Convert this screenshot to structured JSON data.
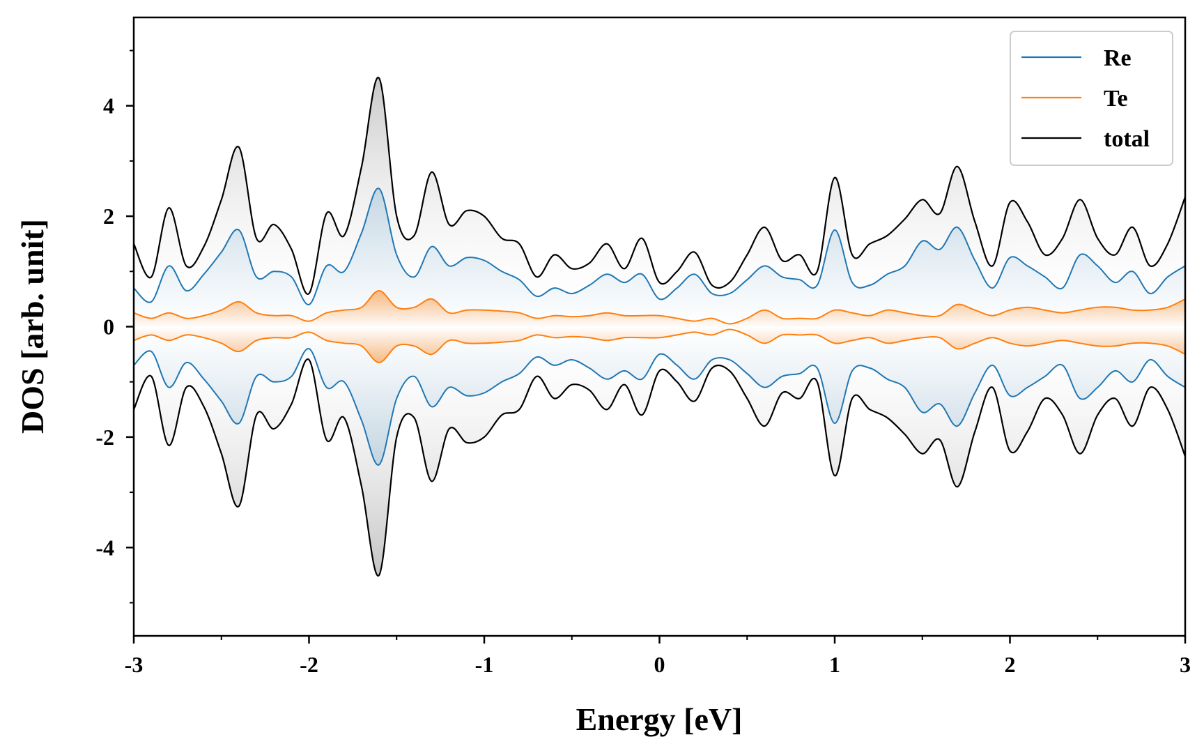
{
  "chart_data": {
    "type": "line",
    "xlabel": "Energy [eV]",
    "ylabel": "DOS [arb. unit]",
    "xlim": [
      -3,
      3
    ],
    "ylim": [
      -5.6,
      5.6
    ],
    "xticks": [
      -3,
      -2,
      -1,
      0,
      1,
      2,
      3
    ],
    "xtick_labels": [
      "-3",
      "-2",
      "-1",
      "0",
      "1",
      "2",
      "3"
    ],
    "yticks": [
      -4,
      -2,
      0,
      2,
      4
    ],
    "ytick_labels": [
      "-4",
      "-2",
      "0",
      "2",
      "4"
    ],
    "mirrored": true,
    "legend_position": "top-right",
    "x": [
      -3.0,
      -2.9,
      -2.8,
      -2.7,
      -2.6,
      -2.5,
      -2.4,
      -2.3,
      -2.2,
      -2.1,
      -2.0,
      -1.9,
      -1.8,
      -1.7,
      -1.6,
      -1.5,
      -1.4,
      -1.3,
      -1.2,
      -1.1,
      -1.0,
      -0.9,
      -0.8,
      -0.7,
      -0.6,
      -0.5,
      -0.4,
      -0.3,
      -0.2,
      -0.1,
      0.0,
      0.1,
      0.2,
      0.3,
      0.4,
      0.5,
      0.6,
      0.7,
      0.8,
      0.9,
      1.0,
      1.1,
      1.2,
      1.3,
      1.4,
      1.5,
      1.6,
      1.7,
      1.8,
      1.9,
      2.0,
      2.1,
      2.2,
      2.3,
      2.4,
      2.5,
      2.6,
      2.7,
      2.8,
      2.9,
      3.0
    ],
    "series": [
      {
        "name": "Re",
        "color": "#1f77b4",
        "values": [
          0.7,
          0.45,
          1.1,
          0.65,
          0.95,
          1.35,
          1.75,
          0.9,
          1.0,
          0.9,
          0.4,
          1.1,
          1.0,
          1.7,
          2.5,
          1.3,
          0.9,
          1.45,
          1.1,
          1.25,
          1.2,
          1.0,
          0.85,
          0.55,
          0.7,
          0.6,
          0.75,
          0.95,
          0.8,
          0.95,
          0.5,
          0.7,
          0.95,
          0.6,
          0.6,
          0.85,
          1.1,
          0.9,
          0.85,
          0.75,
          1.75,
          0.8,
          0.75,
          0.95,
          1.1,
          1.55,
          1.4,
          1.8,
          1.2,
          0.7,
          1.25,
          1.1,
          0.9,
          0.7,
          1.3,
          1.1,
          0.8,
          1.0,
          0.6,
          0.9,
          1.1
        ]
      },
      {
        "name": "Te",
        "color": "#ff7f0e",
        "values": [
          0.25,
          0.15,
          0.25,
          0.15,
          0.2,
          0.3,
          0.45,
          0.25,
          0.2,
          0.2,
          0.1,
          0.25,
          0.3,
          0.35,
          0.65,
          0.35,
          0.35,
          0.5,
          0.25,
          0.3,
          0.3,
          0.28,
          0.25,
          0.15,
          0.2,
          0.18,
          0.2,
          0.25,
          0.2,
          0.2,
          0.2,
          0.15,
          0.1,
          0.15,
          0.05,
          0.15,
          0.3,
          0.15,
          0.15,
          0.15,
          0.3,
          0.25,
          0.2,
          0.3,
          0.25,
          0.2,
          0.2,
          0.4,
          0.3,
          0.2,
          0.3,
          0.35,
          0.3,
          0.25,
          0.3,
          0.35,
          0.35,
          0.3,
          0.3,
          0.35,
          0.5
        ]
      },
      {
        "name": "total",
        "color": "#000000",
        "values": [
          1.5,
          0.9,
          2.15,
          1.1,
          1.45,
          2.3,
          3.25,
          1.6,
          1.85,
          1.4,
          0.6,
          2.05,
          1.65,
          2.9,
          4.5,
          2.0,
          1.65,
          2.8,
          1.85,
          2.1,
          2.0,
          1.6,
          1.5,
          0.9,
          1.3,
          1.05,
          1.15,
          1.5,
          1.05,
          1.6,
          0.8,
          1.0,
          1.35,
          0.75,
          0.8,
          1.3,
          1.8,
          1.2,
          1.3,
          1.0,
          2.7,
          1.3,
          1.5,
          1.65,
          1.95,
          2.3,
          2.05,
          2.9,
          1.9,
          1.1,
          2.25,
          1.9,
          1.3,
          1.6,
          2.3,
          1.6,
          1.3,
          1.8,
          1.1,
          1.5,
          2.35
        ]
      }
    ]
  }
}
